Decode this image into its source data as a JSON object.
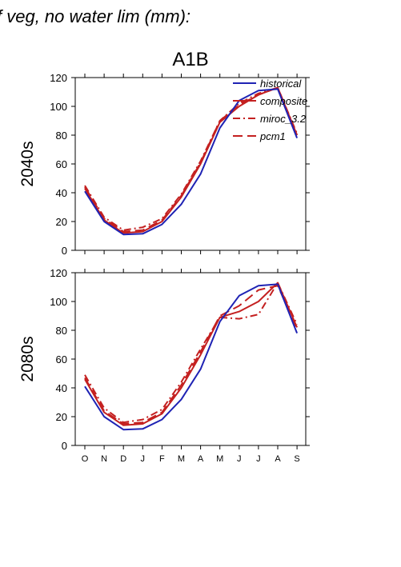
{
  "figure": {
    "title": "f veg, no water lim (mm):",
    "panel_title": "A1B"
  },
  "chart_data": [
    {
      "type": "line",
      "row_label": "2040s",
      "categories": [
        "O",
        "N",
        "D",
        "J",
        "F",
        "M",
        "A",
        "M",
        "J",
        "J",
        "A",
        "S"
      ],
      "ylim": [
        0,
        120
      ],
      "yticks": [
        0,
        20,
        40,
        60,
        80,
        100,
        120
      ],
      "legend": {
        "placement": "top-right",
        "entries": [
          "historical",
          "composite",
          "miroc_3.2",
          "pcm1"
        ]
      },
      "series": [
        {
          "name": "historical",
          "color": "#1f23b4",
          "dash": "solid",
          "values": [
            41,
            20,
            11,
            11.5,
            18,
            32,
            53,
            85,
            104,
            111,
            112,
            78
          ]
        },
        {
          "name": "composite",
          "color": "#c42020",
          "dash": "solid",
          "values": [
            43,
            21,
            12,
            13,
            20,
            37,
            60,
            89,
            100,
            108,
            113,
            80
          ]
        },
        {
          "name": "miroc_3.2",
          "color": "#c42020",
          "dash": "dashdot",
          "values": [
            45,
            23,
            14,
            16,
            22,
            39,
            62,
            90,
            102,
            109,
            113,
            81
          ]
        },
        {
          "name": "pcm1",
          "color": "#c42020",
          "dash": "longdash",
          "values": [
            44,
            22,
            13,
            14,
            21,
            38,
            61,
            90,
            101,
            108,
            113,
            80
          ]
        }
      ]
    },
    {
      "type": "line",
      "row_label": "2080s",
      "categories": [
        "O",
        "N",
        "D",
        "J",
        "F",
        "M",
        "A",
        "M",
        "J",
        "J",
        "A",
        "S"
      ],
      "ylim": [
        0,
        120
      ],
      "yticks": [
        0,
        20,
        40,
        60,
        80,
        100,
        120
      ],
      "series": [
        {
          "name": "historical",
          "color": "#1f23b4",
          "dash": "solid",
          "values": [
            41,
            20,
            11,
            11.5,
            18,
            32,
            53,
            86,
            104,
            111,
            112,
            78
          ]
        },
        {
          "name": "composite",
          "color": "#c42020",
          "dash": "solid",
          "values": [
            46,
            23,
            14,
            15,
            22,
            40,
            63,
            89,
            93,
            100,
            113,
            82
          ]
        },
        {
          "name": "miroc_3.2",
          "color": "#c42020",
          "dash": "dashdot",
          "values": [
            49,
            26,
            16,
            18,
            25,
            44,
            67,
            89,
            88,
            91,
            113,
            84
          ]
        },
        {
          "name": "pcm1",
          "color": "#c42020",
          "dash": "longdash",
          "values": [
            47,
            24,
            15,
            16,
            23,
            42,
            65,
            90,
            97,
            108,
            111,
            81
          ]
        }
      ]
    }
  ]
}
